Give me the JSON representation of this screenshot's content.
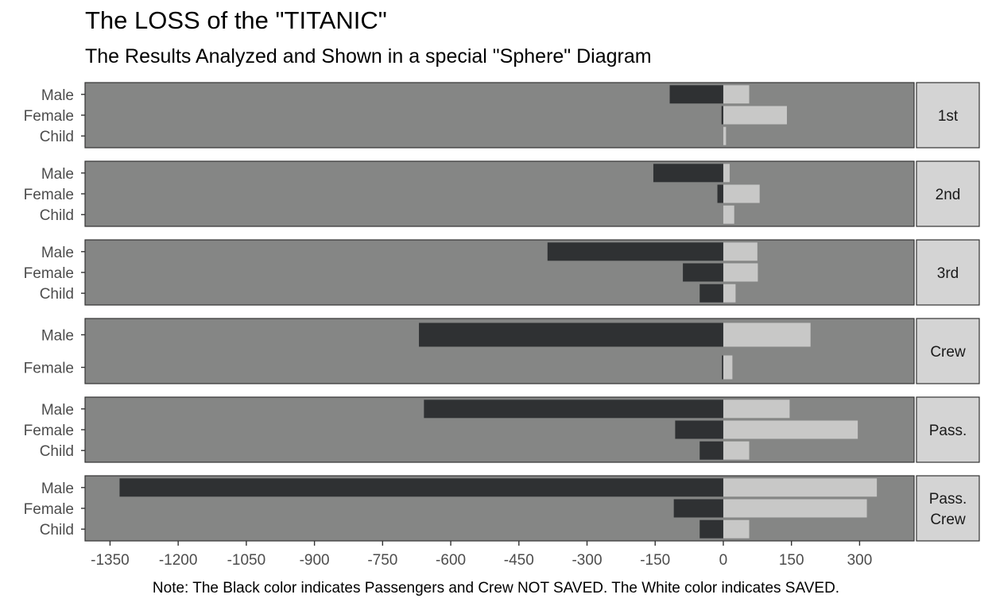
{
  "chart_data": {
    "type": "bar",
    "title": "The LOSS of the \"TITANIC\"",
    "subtitle": "The Results Analyzed and Shown in a special \"Sphere\" Diagram",
    "caption": "Note: The Black color indicates Passengers and Crew NOT SAVED. The White color indicates SAVED.",
    "orientation": "horizontal-diverging",
    "x_ticks": [
      -1350,
      -1200,
      -1050,
      -900,
      -750,
      -600,
      -450,
      -300,
      -150,
      0,
      150,
      300
    ],
    "x_tick_labels": [
      "-1350",
      "-1200",
      "-1050",
      "-900",
      "-750",
      "-600",
      "-450",
      "-300",
      "-150",
      "0",
      "150",
      "300"
    ],
    "xlim": [
      -1405,
      420
    ],
    "colors": {
      "panel_bg": "#858685",
      "not_saved": "#2f3133",
      "saved": "#c8c8c7",
      "strip_bg": "#d4d4d4",
      "border": "#333333"
    },
    "panels": [
      {
        "label": [
          "1st"
        ],
        "rows": [
          {
            "category": "Male",
            "not_saved": -118,
            "saved": 57
          },
          {
            "category": "Female",
            "not_saved": -4,
            "saved": 140
          },
          {
            "category": "Child",
            "not_saved": 0,
            "saved": 6
          }
        ]
      },
      {
        "label": [
          "2nd"
        ],
        "rows": [
          {
            "category": "Male",
            "not_saved": -154,
            "saved": 14
          },
          {
            "category": "Female",
            "not_saved": -13,
            "saved": 80
          },
          {
            "category": "Child",
            "not_saved": 0,
            "saved": 24
          }
        ]
      },
      {
        "label": [
          "3rd"
        ],
        "rows": [
          {
            "category": "Male",
            "not_saved": -387,
            "saved": 75
          },
          {
            "category": "Female",
            "not_saved": -89,
            "saved": 76
          },
          {
            "category": "Child",
            "not_saved": -52,
            "saved": 27
          }
        ]
      },
      {
        "label": [
          "Crew"
        ],
        "rows": [
          {
            "category": "Male",
            "not_saved": -670,
            "saved": 192
          },
          {
            "category": "Female",
            "not_saved": -3,
            "saved": 20
          }
        ]
      },
      {
        "label": [
          "Pass."
        ],
        "rows": [
          {
            "category": "Male",
            "not_saved": -659,
            "saved": 146
          },
          {
            "category": "Female",
            "not_saved": -106,
            "saved": 296
          },
          {
            "category": "Child",
            "not_saved": -52,
            "saved": 57
          }
        ]
      },
      {
        "label": [
          "Pass.",
          "Crew"
        ],
        "rows": [
          {
            "category": "Male",
            "not_saved": -1329,
            "saved": 338
          },
          {
            "category": "Female",
            "not_saved": -109,
            "saved": 316
          },
          {
            "category": "Child",
            "not_saved": -52,
            "saved": 57
          }
        ]
      }
    ]
  }
}
